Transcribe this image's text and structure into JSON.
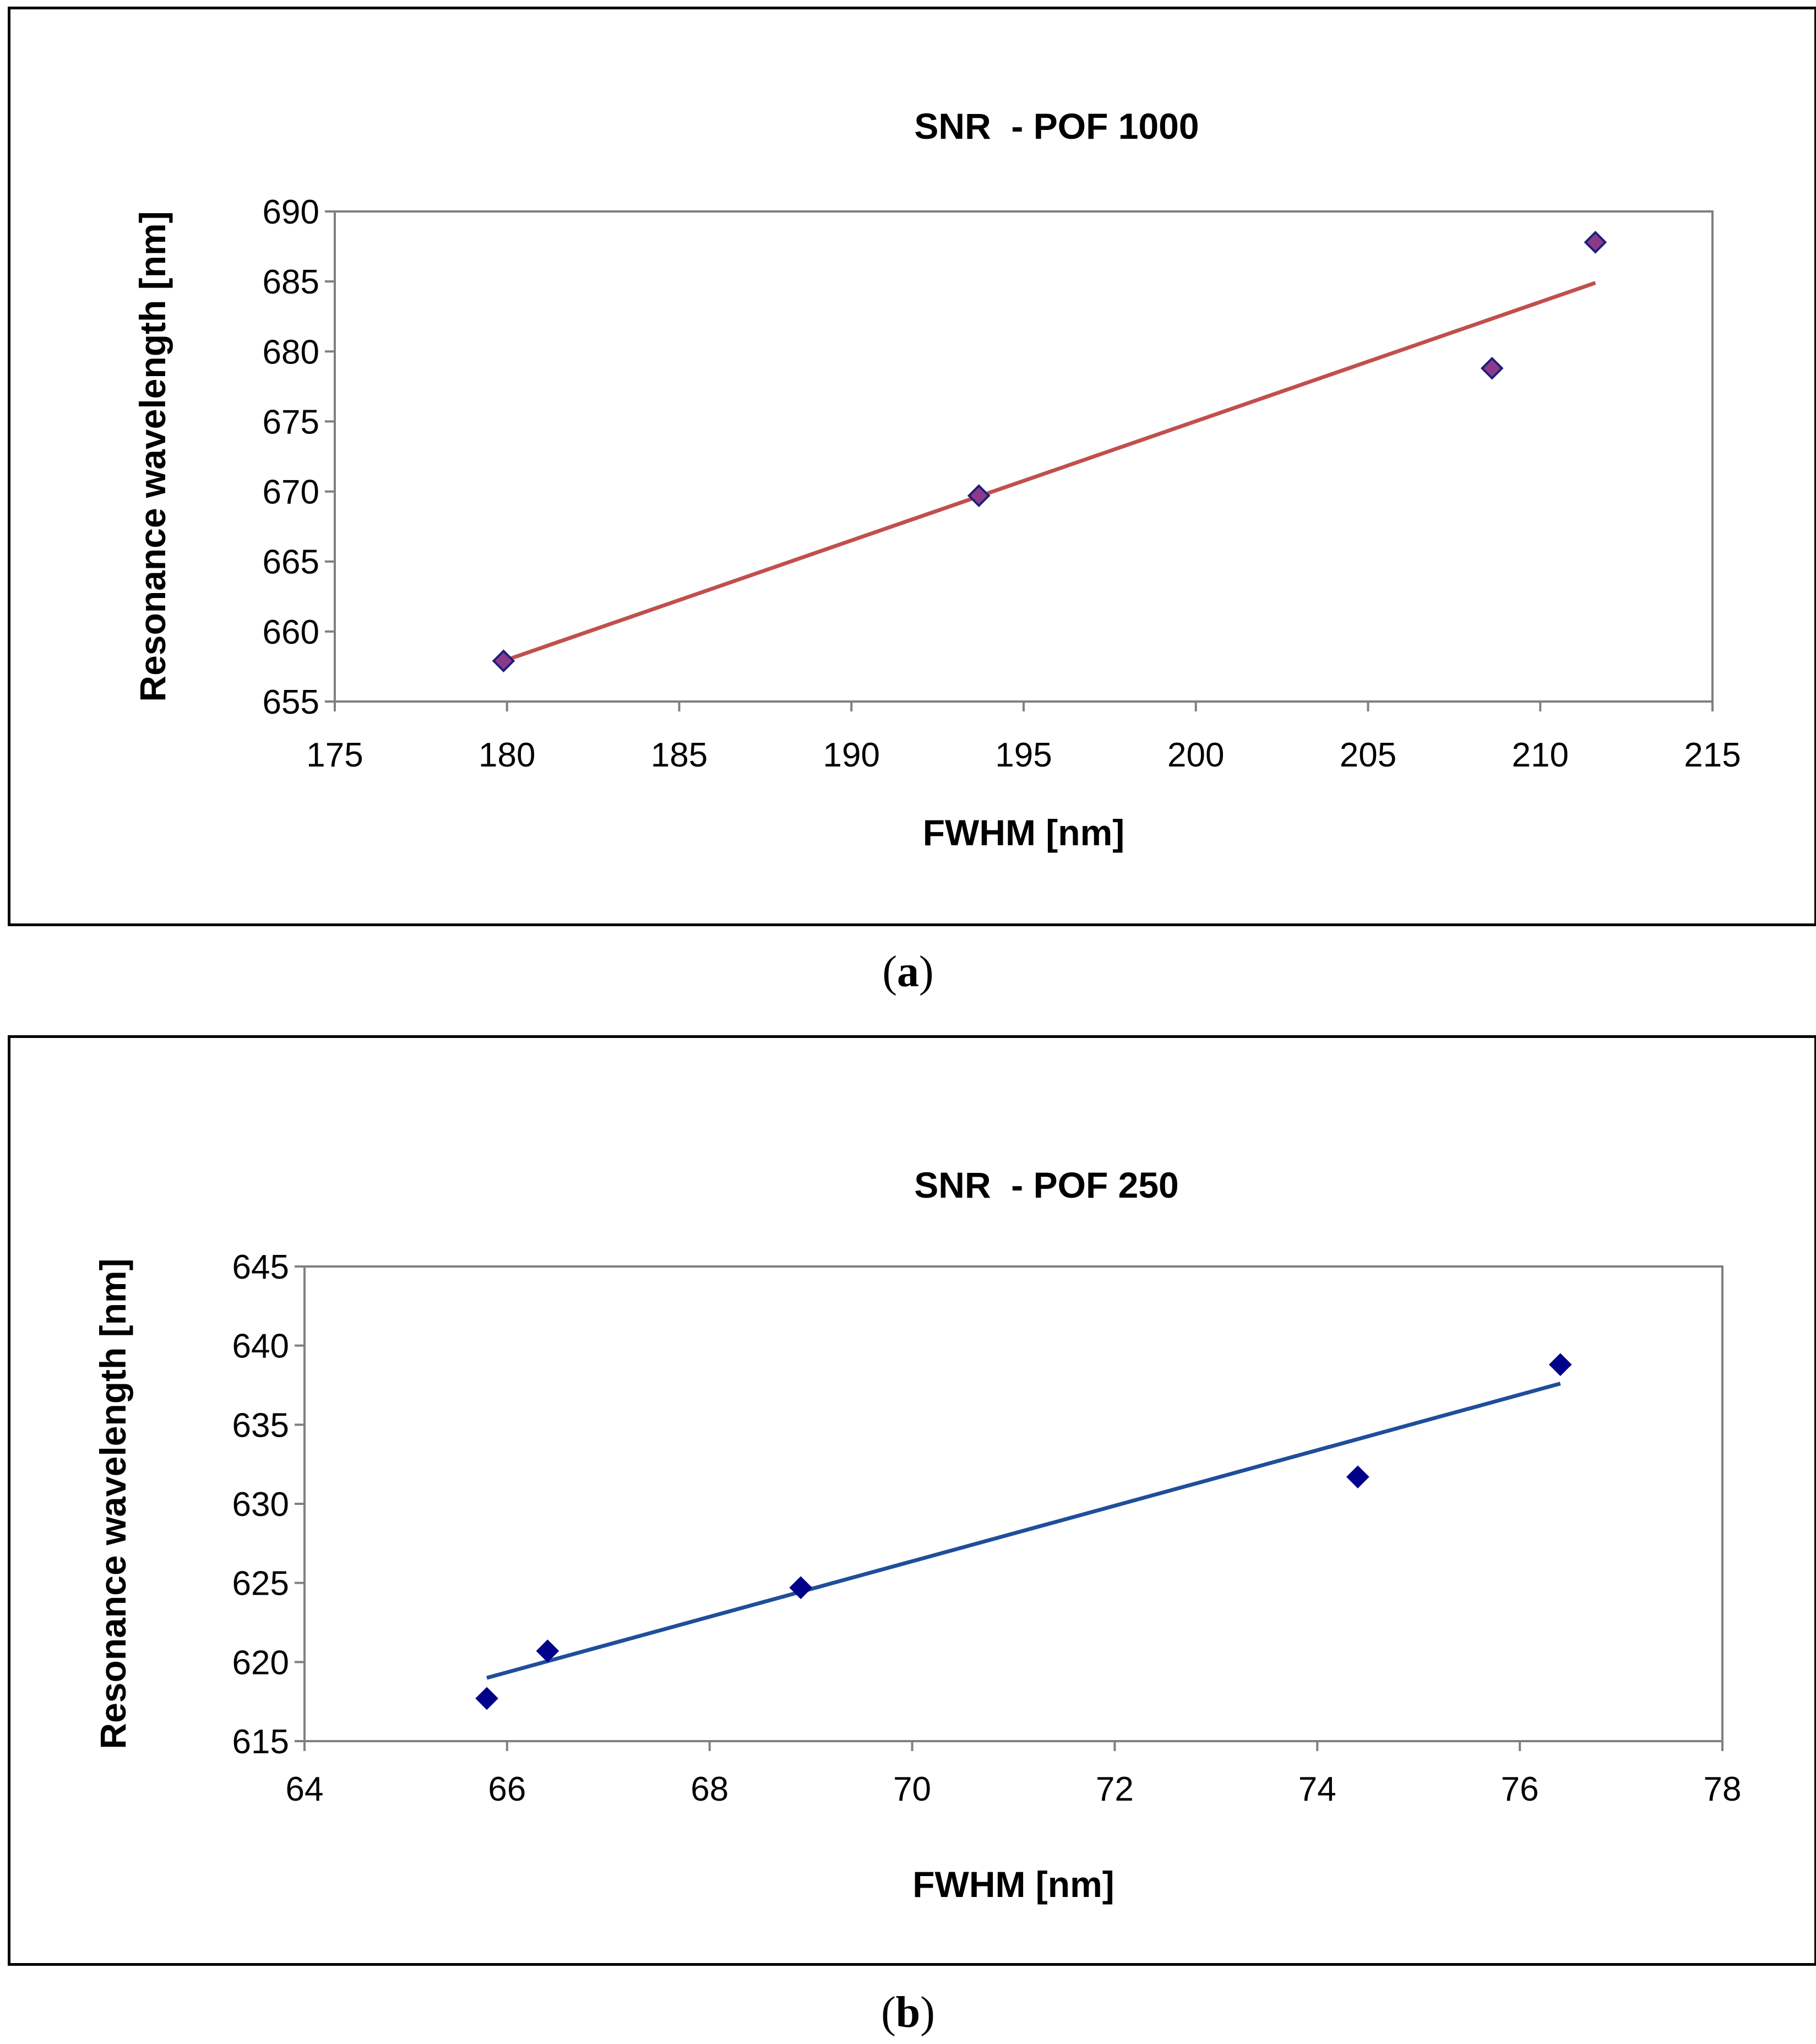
{
  "chart_data": [
    {
      "type": "scatter",
      "title": "SNR  - POF 1000",
      "xlabel": "FWHM [nm]",
      "ylabel": "Resonance wavelength [nm]",
      "xlim": [
        175,
        215
      ],
      "ylim": [
        655,
        690
      ],
      "xticks": [
        "175",
        "180",
        "185",
        "190",
        "195",
        "200",
        "205",
        "210",
        "215"
      ],
      "yticks": [
        "655",
        "660",
        "665",
        "670",
        "675",
        "680",
        "685",
        "690"
      ],
      "x": [
        179.9,
        193.7,
        208.6,
        211.6
      ],
      "y": [
        657.9,
        669.7,
        678.8,
        687.8
      ],
      "trendline": {
        "x": [
          179.9,
          211.6
        ],
        "y": [
          657.9,
          684.9
        ]
      },
      "marker_color": "#8B3A8B",
      "marker_stroke": "#1F1F7A",
      "line_color": "#C0504D",
      "caption": "a"
    },
    {
      "type": "scatter",
      "title": "SNR  - POF 250",
      "xlabel": "FWHM [nm]",
      "ylabel": "Resonance wavelength [nm]",
      "xlim": [
        64,
        78
      ],
      "ylim": [
        615,
        645
      ],
      "xticks": [
        "64",
        "66",
        "68",
        "70",
        "72",
        "74",
        "76",
        "78"
      ],
      "yticks": [
        "615",
        "620",
        "625",
        "630",
        "635",
        "640",
        "645"
      ],
      "x": [
        65.8,
        66.4,
        68.9,
        74.4,
        76.4
      ],
      "y": [
        617.7,
        620.7,
        624.7,
        631.7,
        638.8
      ],
      "trendline": {
        "x": [
          65.8,
          76.4
        ],
        "y": [
          619.0,
          637.6
        ]
      },
      "marker_color": "#00008B",
      "marker_stroke": "#00008B",
      "line_color": "#1F4E9A",
      "caption": "b"
    }
  ]
}
